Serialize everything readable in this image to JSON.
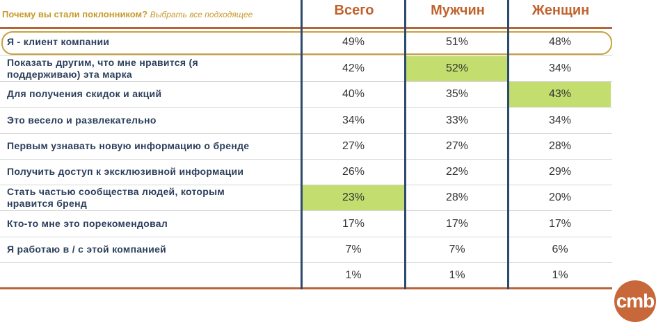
{
  "question": "Почему вы стали поклонником?",
  "question_hint": "Выбрать все подходящее",
  "logo_text": "cmb",
  "colors": {
    "accent": "#c0622d",
    "highlight": "#c3de6f",
    "label": "#2b3f5c",
    "rule": "#b8643a",
    "vline": "#2c4a6b",
    "oval": "#c9a040"
  },
  "chart_data": {
    "type": "table",
    "columns": [
      "Всего",
      "Мужчин",
      "Женщин"
    ],
    "rows": [
      {
        "label": [
          "Я - клиент компании"
        ],
        "values": [
          "49%",
          "51%",
          "48%"
        ],
        "highlight": [
          false,
          false,
          false
        ],
        "circled": true
      },
      {
        "label": [
          "Показать другим, что мне нравится (я",
          "поддерживаю) эта марка"
        ],
        "values": [
          "42%",
          "52%",
          "34%"
        ],
        "highlight": [
          false,
          true,
          false
        ]
      },
      {
        "label": [
          "Для получения скидок и акций"
        ],
        "values": [
          "40%",
          "35%",
          "43%"
        ],
        "highlight": [
          false,
          false,
          true
        ]
      },
      {
        "label": [
          "Это весело и развлекательно"
        ],
        "values": [
          "34%",
          "33%",
          "34%"
        ],
        "highlight": [
          false,
          false,
          false
        ]
      },
      {
        "label": [
          "Первым узнавать новую информацию о бренде"
        ],
        "values": [
          "27%",
          "27%",
          "28%"
        ],
        "highlight": [
          false,
          false,
          false
        ]
      },
      {
        "label": [
          "Получить доступ к эксклюзивной информации"
        ],
        "values": [
          "26%",
          "22%",
          "29%"
        ],
        "highlight": [
          false,
          false,
          false
        ]
      },
      {
        "label": [
          "Стать частью сообщества людей, которым",
          "нравится бренд"
        ],
        "values": [
          "23%",
          "28%",
          "20%"
        ],
        "highlight": [
          true,
          false,
          false
        ]
      },
      {
        "label": [
          "Кто-то мне это порекомендовал"
        ],
        "values": [
          "17%",
          "17%",
          "17%"
        ],
        "highlight": [
          false,
          false,
          false
        ]
      },
      {
        "label": [
          "Я работаю в / с этой компанией"
        ],
        "values": [
          "7%",
          "7%",
          "6%"
        ],
        "highlight": [
          false,
          false,
          false
        ]
      },
      {
        "label": [],
        "values": [
          "1%",
          "1%",
          "1%"
        ],
        "highlight": [
          false,
          false,
          false
        ]
      }
    ]
  }
}
